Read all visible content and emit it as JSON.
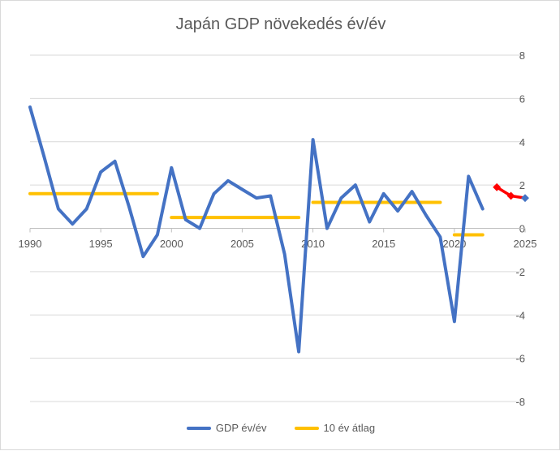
{
  "chart_data": {
    "type": "line",
    "title": "Japán GDP növekedés év/év",
    "xlim": [
      1990,
      2025
    ],
    "ylim": [
      -8,
      8
    ],
    "x_ticks": [
      1990,
      1995,
      2000,
      2005,
      2010,
      2015,
      2020,
      2025
    ],
    "y_ticks": [
      8,
      6,
      4,
      2,
      0,
      -2,
      -4,
      -6,
      -8
    ],
    "grid": true,
    "legend_position": "bottom",
    "series": [
      {
        "name": "GDP év/év",
        "color": "#4472C4",
        "x": [
          1990,
          1991,
          1992,
          1993,
          1994,
          1995,
          1996,
          1997,
          1998,
          1999,
          2000,
          2001,
          2002,
          2003,
          2004,
          2005,
          2006,
          2007,
          2008,
          2009,
          2010,
          2011,
          2012,
          2013,
          2014,
          2015,
          2016,
          2017,
          2018,
          2019,
          2020,
          2021,
          2022
        ],
        "y": [
          5.6,
          3.3,
          0.9,
          0.2,
          0.9,
          2.6,
          3.1,
          1.0,
          -1.3,
          -0.3,
          2.8,
          0.4,
          0.0,
          1.6,
          2.2,
          1.8,
          1.4,
          1.5,
          -1.2,
          -5.7,
          4.1,
          0.0,
          1.4,
          2.0,
          0.3,
          1.6,
          0.8,
          1.7,
          0.6,
          -0.4,
          -4.3,
          2.4,
          0.9
        ]
      },
      {
        "name": "10 év átlag",
        "color": "#FFC000",
        "segments": [
          {
            "x": [
              1990,
              1999
            ],
            "y": 1.6
          },
          {
            "x": [
              2000,
              2009
            ],
            "y": 0.5
          },
          {
            "x": [
              2010,
              2019
            ],
            "y": 1.2
          },
          {
            "x": [
              2020,
              2022
            ],
            "y": -0.3
          }
        ]
      },
      {
        "color": "#FF0000",
        "marker_color": "#4472C4",
        "x": [
          2023,
          2024,
          2025
        ],
        "y": [
          1.9,
          1.5,
          1.4
        ]
      }
    ]
  }
}
